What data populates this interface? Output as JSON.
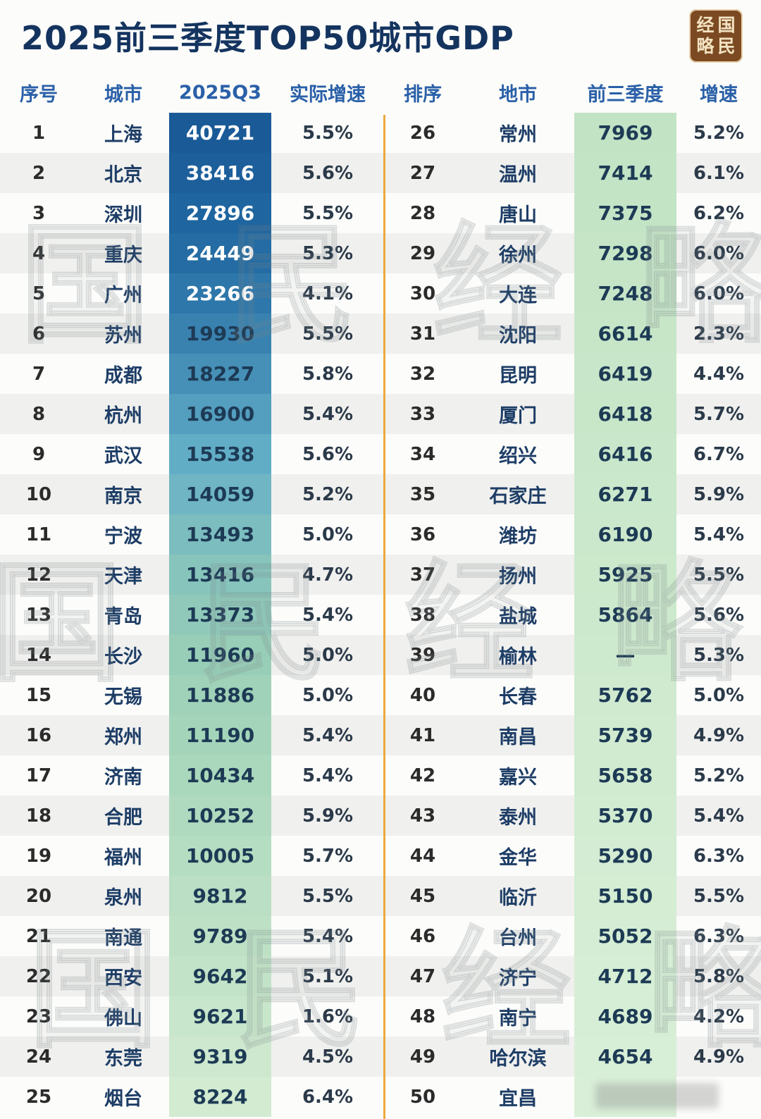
{
  "chart_data": {
    "type": "table",
    "title": "2025前三季度TOP50城市GDP",
    "left": {
      "headers": [
        "序号",
        "城市",
        "2025Q3",
        "实际增速"
      ],
      "rows": [
        [
          "1",
          "上海",
          "40721",
          "5.5%"
        ],
        [
          "2",
          "北京",
          "38416",
          "5.6%"
        ],
        [
          "3",
          "深圳",
          "27896",
          "5.5%"
        ],
        [
          "4",
          "重庆",
          "24449",
          "5.3%"
        ],
        [
          "5",
          "广州",
          "23266",
          "4.1%"
        ],
        [
          "6",
          "苏州",
          "19930",
          "5.5%"
        ],
        [
          "7",
          "成都",
          "18227",
          "5.8%"
        ],
        [
          "8",
          "杭州",
          "16900",
          "5.4%"
        ],
        [
          "9",
          "武汉",
          "15538",
          "5.6%"
        ],
        [
          "10",
          "南京",
          "14059",
          "5.2%"
        ],
        [
          "11",
          "宁波",
          "13493",
          "5.0%"
        ],
        [
          "12",
          "天津",
          "13416",
          "4.7%"
        ],
        [
          "13",
          "青岛",
          "13373",
          "5.4%"
        ],
        [
          "14",
          "长沙",
          "11960",
          "5.0%"
        ],
        [
          "15",
          "无锡",
          "11886",
          "5.0%"
        ],
        [
          "16",
          "郑州",
          "11190",
          "5.4%"
        ],
        [
          "17",
          "济南",
          "10434",
          "5.4%"
        ],
        [
          "18",
          "合肥",
          "10252",
          "5.9%"
        ],
        [
          "19",
          "福州",
          "10005",
          "5.7%"
        ],
        [
          "20",
          "泉州",
          "9812",
          "5.5%"
        ],
        [
          "21",
          "南通",
          "9789",
          "5.4%"
        ],
        [
          "22",
          "西安",
          "9642",
          "5.1%"
        ],
        [
          "23",
          "佛山",
          "9621",
          "1.6%"
        ],
        [
          "24",
          "东莞",
          "9319",
          "4.5%"
        ],
        [
          "25",
          "烟台",
          "8224",
          "6.4%"
        ]
      ]
    },
    "right": {
      "headers": [
        "排序",
        "地市",
        "前三季度",
        "增速"
      ],
      "rows": [
        [
          "26",
          "常州",
          "7969",
          "5.2%"
        ],
        [
          "27",
          "温州",
          "7414",
          "6.1%"
        ],
        [
          "28",
          "唐山",
          "7375",
          "6.2%"
        ],
        [
          "29",
          "徐州",
          "7298",
          "6.0%"
        ],
        [
          "30",
          "大连",
          "7248",
          "6.0%"
        ],
        [
          "31",
          "沈阳",
          "6614",
          "2.3%"
        ],
        [
          "32",
          "昆明",
          "6419",
          "4.4%"
        ],
        [
          "33",
          "厦门",
          "6418",
          "5.7%"
        ],
        [
          "34",
          "绍兴",
          "6416",
          "6.7%"
        ],
        [
          "35",
          "石家庄",
          "6271",
          "5.9%"
        ],
        [
          "36",
          "潍坊",
          "6190",
          "5.4%"
        ],
        [
          "37",
          "扬州",
          "5925",
          "5.5%"
        ],
        [
          "38",
          "盐城",
          "5864",
          "5.6%"
        ],
        [
          "39",
          "榆林",
          "—",
          "5.3%"
        ],
        [
          "40",
          "长春",
          "5762",
          "5.0%"
        ],
        [
          "41",
          "南昌",
          "5739",
          "4.9%"
        ],
        [
          "42",
          "嘉兴",
          "5658",
          "5.2%"
        ],
        [
          "43",
          "泰州",
          "5370",
          "5.4%"
        ],
        [
          "44",
          "金华",
          "5290",
          "6.3%"
        ],
        [
          "45",
          "临沂",
          "5150",
          "5.5%"
        ],
        [
          "46",
          "台州",
          "5052",
          "6.3%"
        ],
        [
          "47",
          "济宁",
          "4712",
          "5.8%"
        ],
        [
          "48",
          "南宁",
          "4689",
          "4.2%"
        ],
        [
          "49",
          "哈尔滨",
          "4654",
          "4.9%"
        ],
        [
          "50",
          "宜昌",
          "",
          ""
        ]
      ]
    }
  },
  "logo": {
    "top_left": "经",
    "top_right": "国",
    "bottom_left": "略",
    "bottom_right": "民"
  },
  "watermark_text": "国民经略",
  "colors": {
    "title": "#14345f",
    "header_text": "#2a60a8",
    "divider": "#eca93c",
    "left_value_scale": [
      "#1a5a97",
      "#2068a1",
      "#3c86b2",
      "#62adc6",
      "#84c2bd",
      "#9bd0b6",
      "#aad8bc",
      "#b8dec3",
      "#c4e4c9",
      "#d2ebd1"
    ],
    "right_value_scale": [
      "#c2e3c4",
      "#cde9cd",
      "#d9efd8"
    ],
    "white_text_rows": 5
  }
}
